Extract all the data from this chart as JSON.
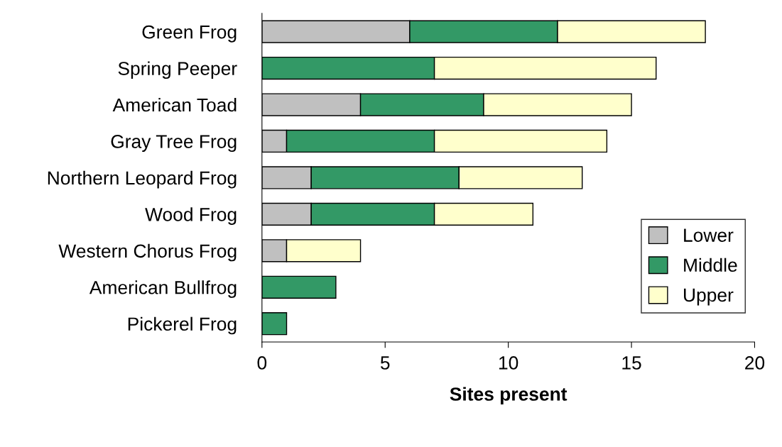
{
  "chart_data": {
    "type": "bar",
    "orientation": "horizontal",
    "stacked": true,
    "xlabel": "Sites present",
    "categories": [
      "Green Frog",
      "Spring Peeper",
      "American Toad",
      "Gray Tree Frog",
      "Northern Leopard Frog",
      "Wood Frog",
      "Western Chorus Frog",
      "American Bullfrog",
      "Pickerel Frog"
    ],
    "series": [
      {
        "name": "Lower",
        "color": "#c0c0c0",
        "values": [
          6,
          null,
          4,
          1,
          2,
          2,
          1,
          null,
          null
        ]
      },
      {
        "name": "Middle",
        "color": "#339966",
        "values": [
          6,
          7,
          5,
          6,
          6,
          5,
          null,
          3,
          1
        ]
      },
      {
        "name": "Upper",
        "color": "#ffffcc",
        "values": [
          6,
          9,
          6,
          7,
          5,
          4,
          3,
          null,
          null
        ]
      }
    ],
    "xlim": [
      0,
      20
    ],
    "xticks": [
      0,
      5,
      10,
      15,
      20
    ],
    "grid": false,
    "legend": "bottom right"
  }
}
